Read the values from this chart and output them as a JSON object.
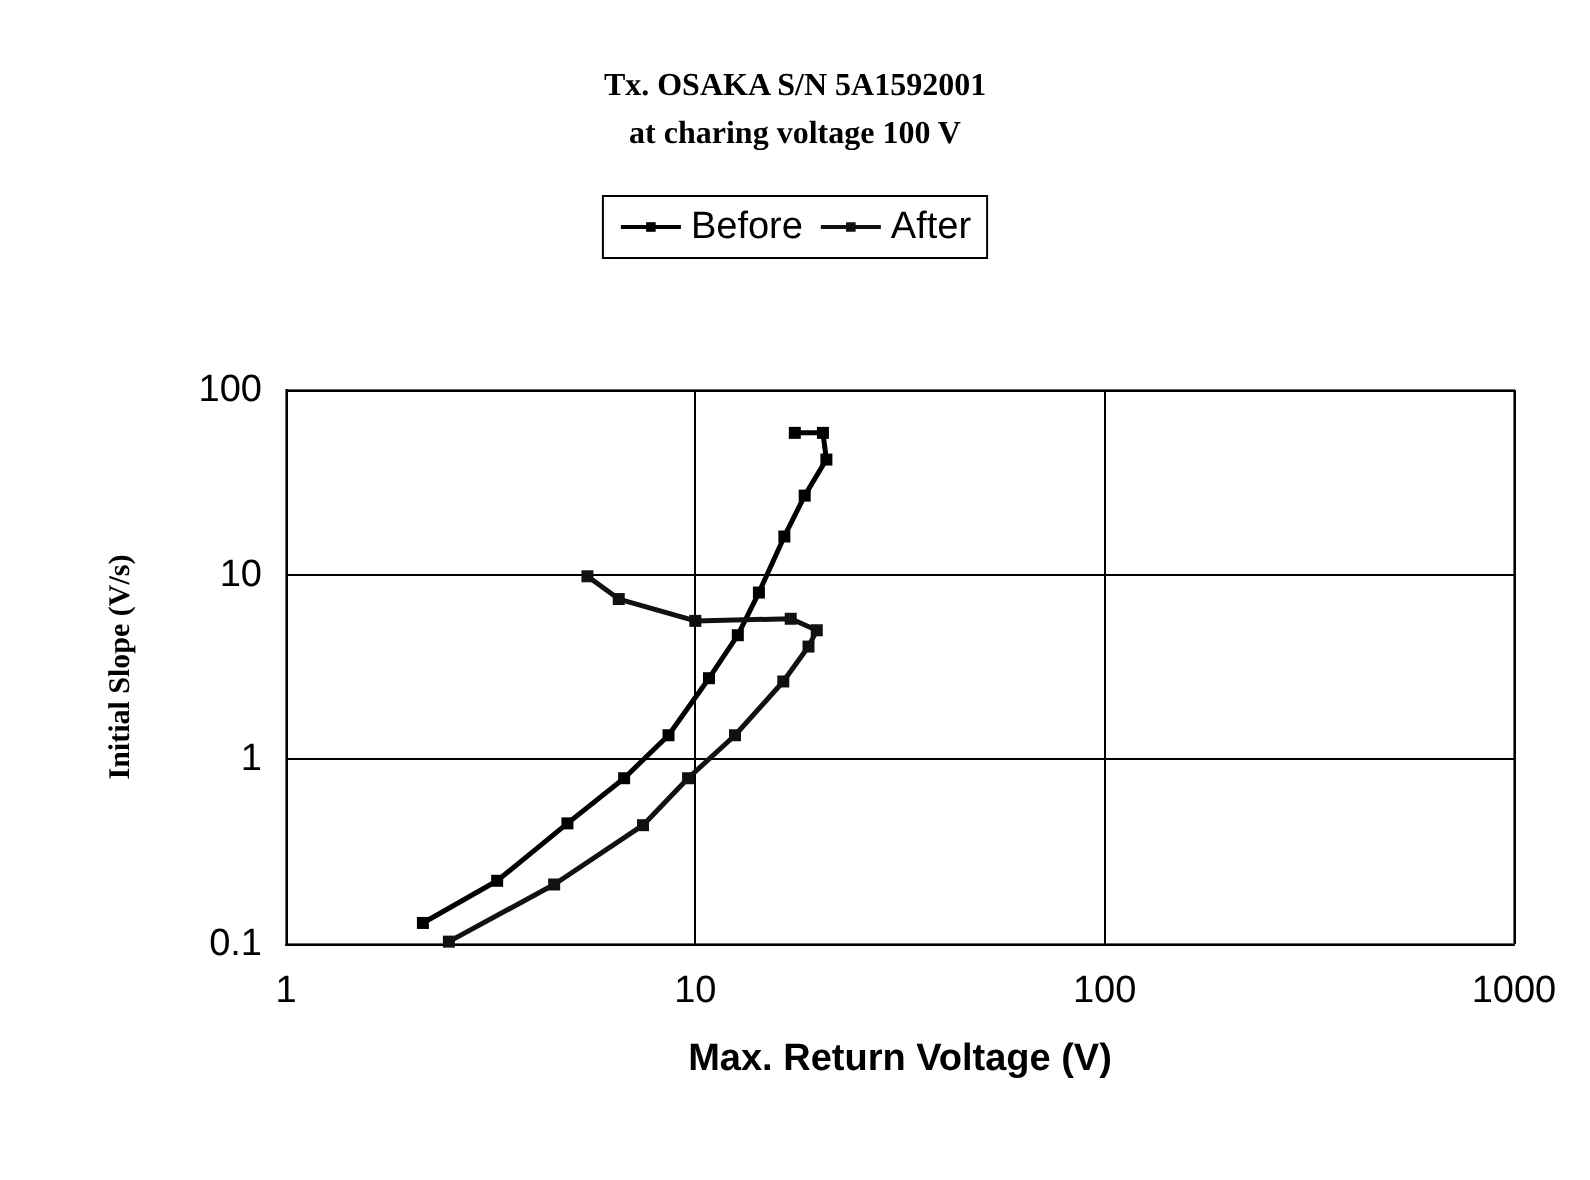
{
  "chart_data": {
    "type": "line",
    "title": "Tx. OSAKA S/N 5A1592001",
    "subtitle": "at charing voltage 100 V",
    "xlabel": "Max. Return Voltage (V)",
    "ylabel": "Initial Slope (V/s)",
    "log": "xy",
    "xlim": [
      1,
      1000
    ],
    "xticks": [
      1,
      10,
      100,
      1000
    ],
    "ylim": [
      0.1,
      100
    ],
    "yticks": [
      0.1,
      1,
      10,
      100
    ],
    "grid": true,
    "legend": "top",
    "marker": "square",
    "line_style": "solid",
    "series": [
      {
        "name": "Before",
        "color": "#000000",
        "x": [
          2.16,
          3.28,
          4.87,
          6.7,
          8.6,
          10.8,
          12.7,
          14.3,
          16.5,
          18.5,
          20.9,
          20.5,
          17.5
        ],
        "values": [
          0.13,
          0.22,
          0.45,
          0.79,
          1.35,
          2.75,
          4.7,
          8.0,
          16.1,
          26.8,
          42,
          58.6,
          58.6
        ]
      },
      {
        "name": "After",
        "color": "#111111",
        "x": [
          2.5,
          4.52,
          7.45,
          9.6,
          12.5,
          16.4,
          18.9,
          19.8,
          17.1,
          10,
          6.5,
          5.45
        ],
        "values": [
          0.103,
          0.21,
          0.44,
          0.79,
          1.35,
          2.64,
          4.08,
          5.0,
          5.77,
          5.62,
          7.38,
          9.8
        ]
      }
    ]
  }
}
